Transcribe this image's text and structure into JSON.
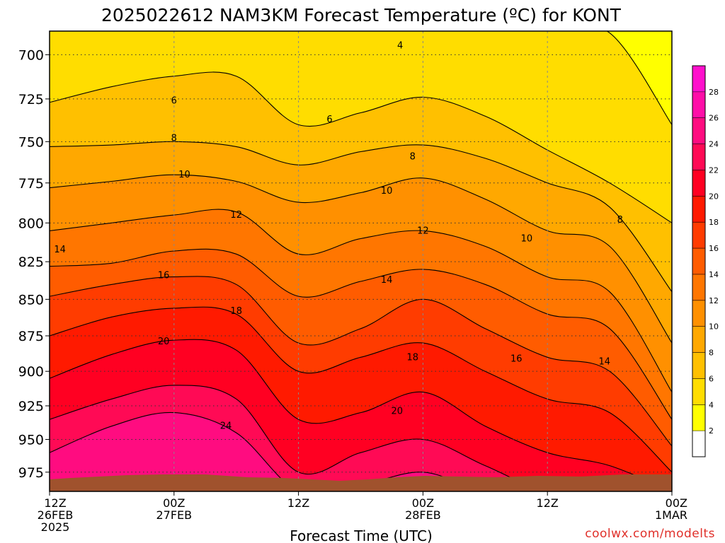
{
  "page": {
    "title": "2025022612 NAM3KM Forecast Temperature (ºC) for KONT",
    "credit": "coolwx.com/modelts"
  },
  "chart_data": {
    "type": "heatmap",
    "title": "2025022612 NAM3KM Forecast Temperature (ºC) for KONT",
    "xlabel": "Forecast Time (UTC)",
    "ylabel": "",
    "y_ticks": [
      "700",
      "725",
      "750",
      "775",
      "800",
      "825",
      "850",
      "875",
      "900",
      "925",
      "950",
      "975"
    ],
    "x_ticks": [
      {
        "hour": 0,
        "lines": [
          "12Z",
          "26FEB",
          "2025"
        ]
      },
      {
        "hour": 12,
        "lines": [
          "00Z",
          "27FEB"
        ]
      },
      {
        "hour": 24,
        "lines": [
          "12Z"
        ]
      },
      {
        "hour": 36,
        "lines": [
          "00Z",
          "28FEB"
        ]
      },
      {
        "hour": 48,
        "lines": [
          "12Z"
        ]
      },
      {
        "hour": 60,
        "lines": [
          "00Z",
          "1MAR"
        ]
      }
    ],
    "xlim_hours": [
      0,
      60
    ],
    "ylim_hpa": [
      687,
      990
    ],
    "y_scale": "log-pressure",
    "grid": "dotted",
    "colorbar": {
      "labels": [
        "2",
        "4",
        "6",
        "8",
        "10",
        "12",
        "14",
        "16",
        "18",
        "20",
        "22",
        "24",
        "26",
        "28"
      ],
      "colors": [
        "#ffffff",
        "#ffff00",
        "#ffdd00",
        "#ffc000",
        "#ffa800",
        "#ff9000",
        "#ff7600",
        "#ff5c00",
        "#ff3c00",
        "#ff1a00",
        "#ff0022",
        "#ff0a55",
        "#ff0c80",
        "#ff0ea8",
        "#ff10cc"
      ]
    },
    "contour_labels": [
      {
        "value": "4",
        "hour": 33.8,
        "hpa": 695
      },
      {
        "value": "6",
        "hour": 12.0,
        "hpa": 726
      },
      {
        "value": "6",
        "hour": 27.0,
        "hpa": 737
      },
      {
        "value": "8",
        "hour": 12.0,
        "hpa": 748
      },
      {
        "value": "8",
        "hour": 35.0,
        "hpa": 759
      },
      {
        "value": "8",
        "hour": 55.0,
        "hpa": 798
      },
      {
        "value": "10",
        "hour": 13.0,
        "hpa": 770
      },
      {
        "value": "10",
        "hour": 32.5,
        "hpa": 780
      },
      {
        "value": "10",
        "hour": 46.0,
        "hpa": 810
      },
      {
        "value": "12",
        "hour": 18.0,
        "hpa": 795
      },
      {
        "value": "12",
        "hour": 36.0,
        "hpa": 805
      },
      {
        "value": "14",
        "hour": 1.0,
        "hpa": 817
      },
      {
        "value": "14",
        "hour": 32.5,
        "hpa": 837
      },
      {
        "value": "14",
        "hour": 53.5,
        "hpa": 893
      },
      {
        "value": "16",
        "hour": 11.0,
        "hpa": 834
      },
      {
        "value": "16",
        "hour": 45.0,
        "hpa": 891
      },
      {
        "value": "18",
        "hour": 18.0,
        "hpa": 858
      },
      {
        "value": "18",
        "hour": 35.0,
        "hpa": 890
      },
      {
        "value": "20",
        "hour": 11.0,
        "hpa": 879
      },
      {
        "value": "20",
        "hour": 33.5,
        "hpa": 929
      },
      {
        "value": "24",
        "hour": 17.0,
        "hpa": 940
      }
    ],
    "isotherms_c": [
      4,
      6,
      8,
      10,
      12,
      14,
      16,
      18,
      20,
      22,
      24
    ],
    "profile_hours": [
      0,
      6,
      12,
      18,
      24,
      30,
      36,
      42,
      48,
      54,
      60
    ],
    "isotherm_pressure_hpa": [
      [
        687,
        687,
        687,
        687,
        687,
        687,
        687,
        687,
        687,
        688,
        740
      ],
      [
        727,
        718,
        712,
        712,
        740,
        733,
        724,
        735,
        755,
        775,
        800
      ],
      [
        753,
        752,
        750,
        753,
        764,
        756,
        752,
        760,
        775,
        790,
        845
      ],
      [
        778,
        774,
        770,
        774,
        787,
        781,
        772,
        785,
        805,
        815,
        880
      ],
      [
        805,
        800,
        795,
        793,
        820,
        810,
        805,
        815,
        835,
        845,
        915
      ],
      [
        828,
        826,
        818,
        820,
        848,
        838,
        830,
        840,
        860,
        870,
        935
      ],
      [
        848,
        840,
        835,
        840,
        880,
        870,
        850,
        870,
        890,
        900,
        955
      ],
      [
        875,
        862,
        856,
        860,
        900,
        890,
        880,
        900,
        920,
        930,
        975
      ],
      [
        905,
        888,
        878,
        885,
        935,
        930,
        915,
        940,
        960,
        970,
        990
      ],
      [
        935,
        920,
        910,
        920,
        975,
        960,
        950,
        970,
        990,
        990,
        990
      ],
      [
        960,
        940,
        930,
        945,
        990,
        985,
        975,
        990,
        990,
        990,
        990
      ]
    ]
  }
}
